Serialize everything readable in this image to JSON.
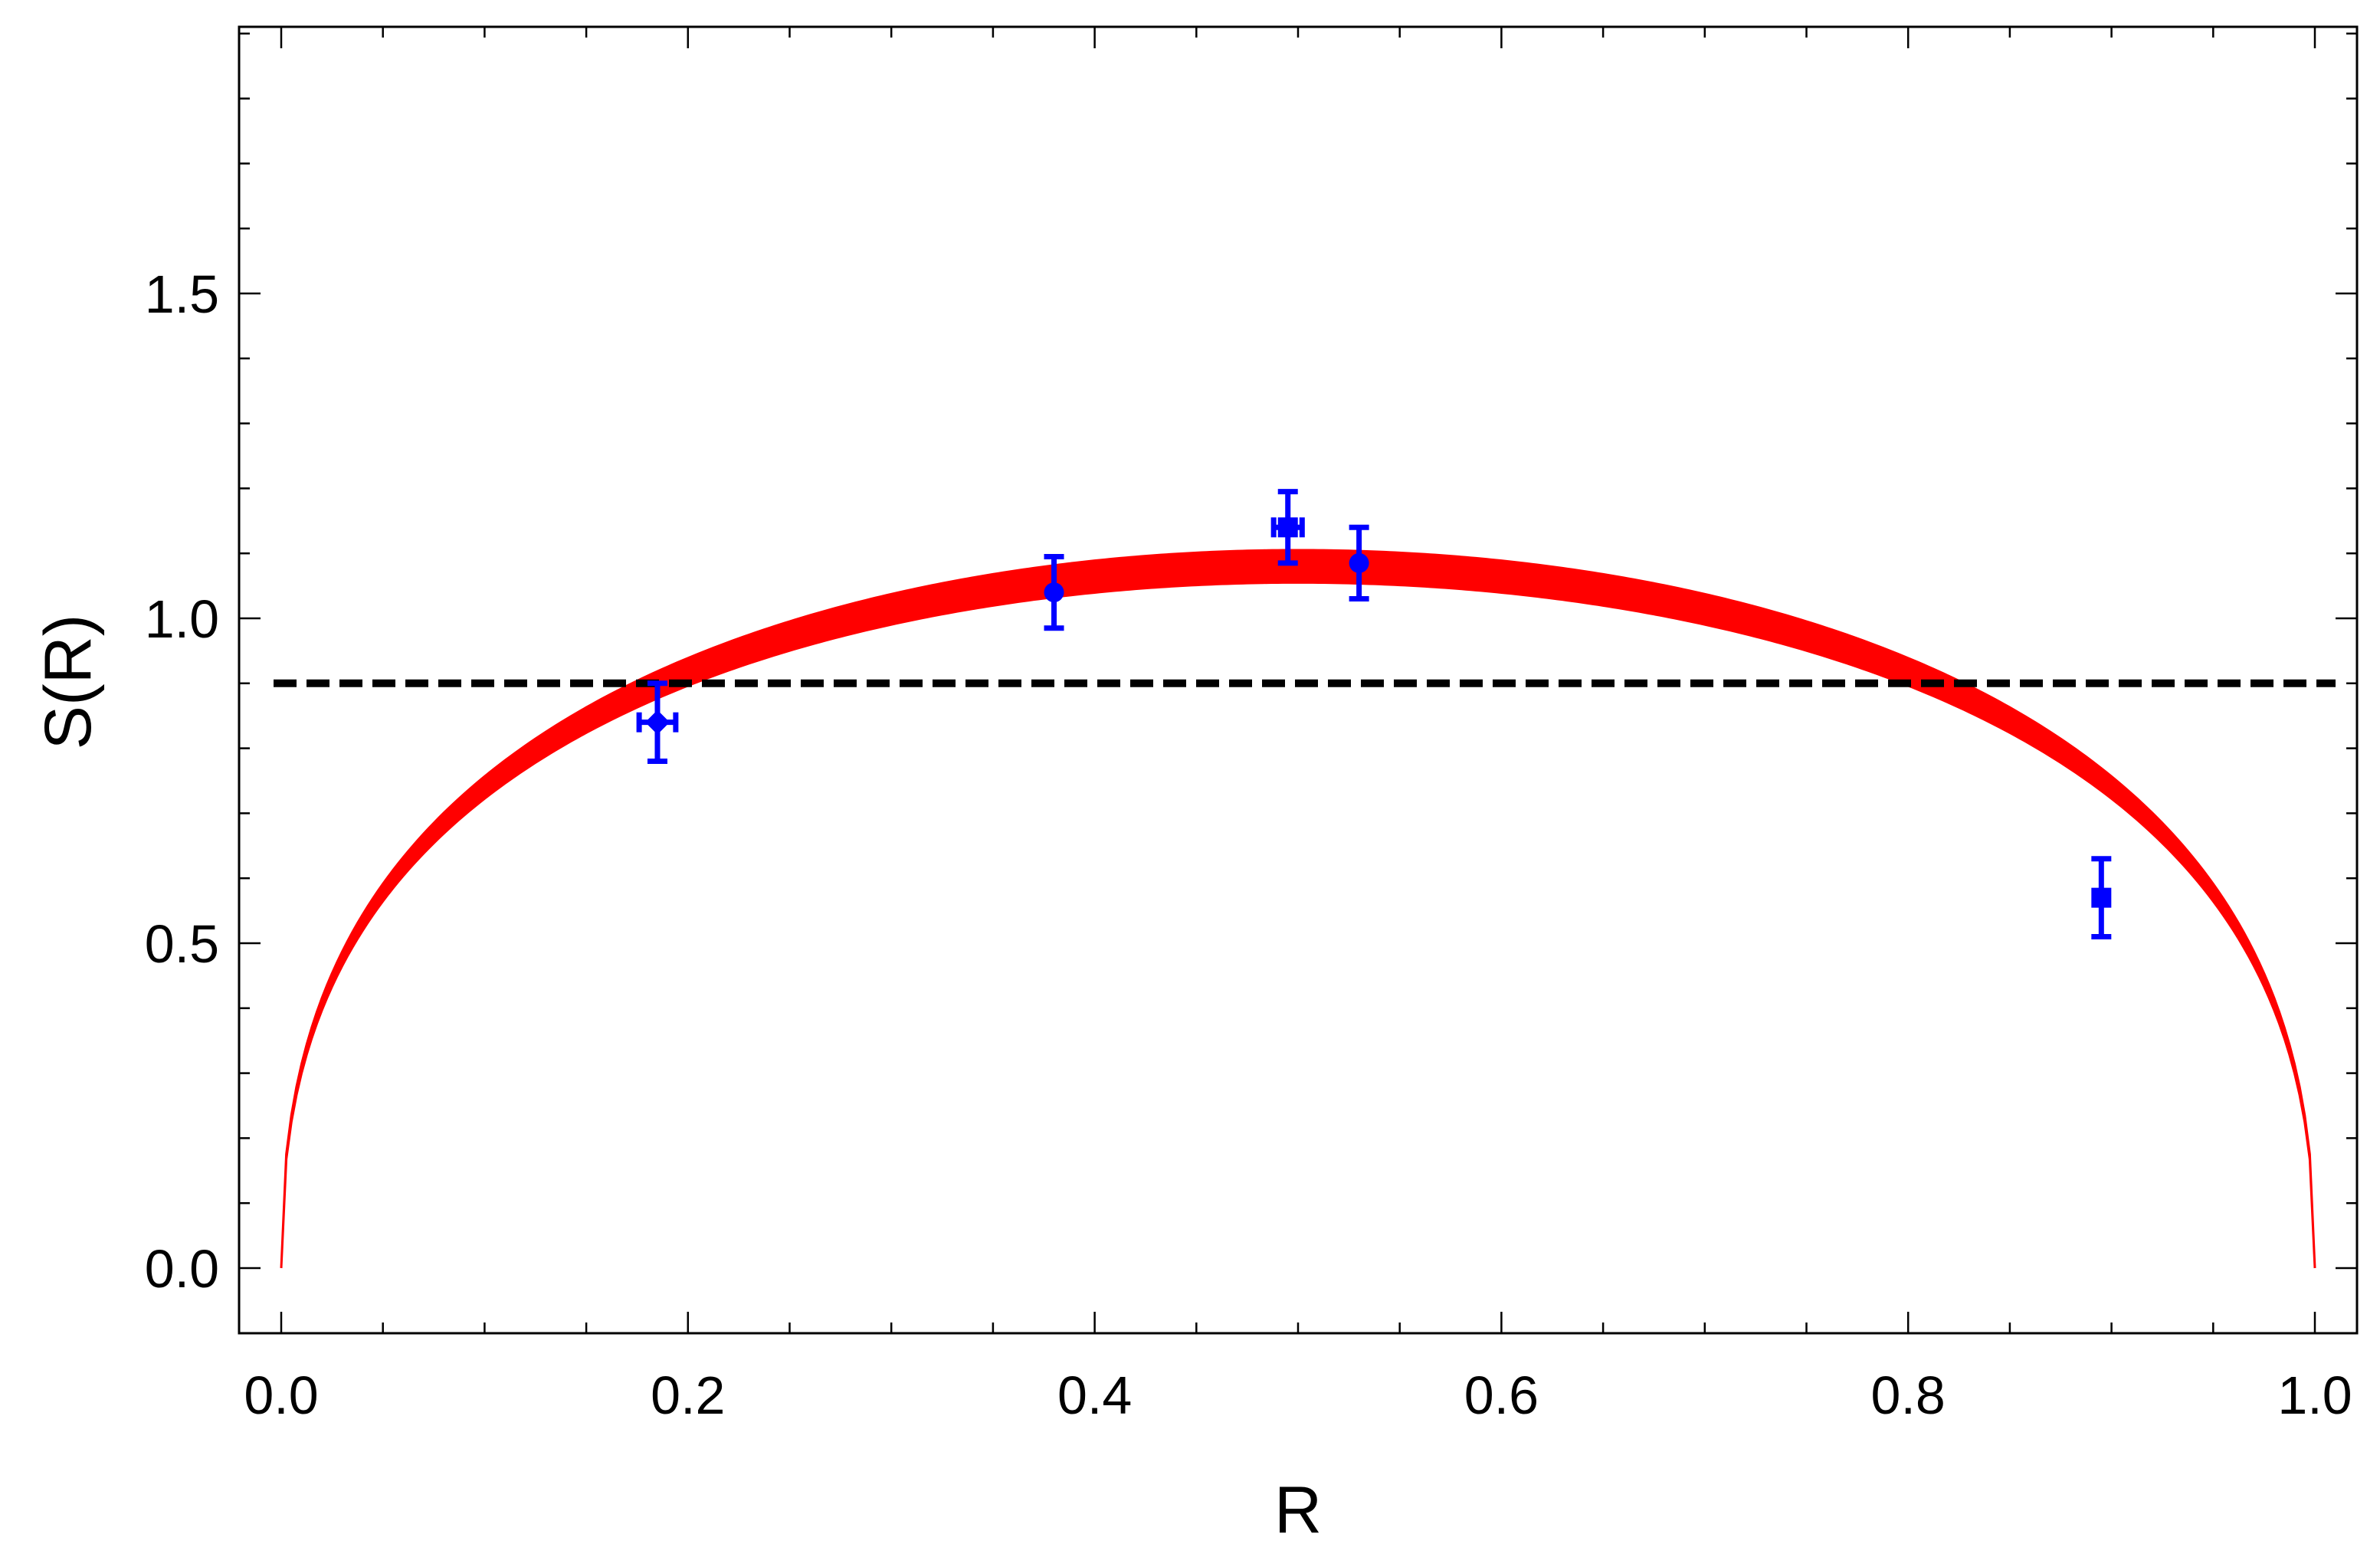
{
  "chart_data": {
    "type": "scatter",
    "title": "",
    "xlabel": "R",
    "ylabel": "S(R)",
    "xlim": [
      -0.05,
      1.02
    ],
    "ylim": [
      -0.1,
      1.95
    ],
    "x_ticks": [
      "0.0",
      "0.2",
      "0.4",
      "0.6",
      "0.8",
      "1.0"
    ],
    "y_ticks": [
      "0.0",
      "0.5",
      "1.0",
      "1.5"
    ],
    "grid": false,
    "legend": "none",
    "band": {
      "color": "#ff0000",
      "formula_note": "S(R) band between lower and upper bound curves",
      "peak_lower": 1.055,
      "peak_upper": 1.105
    },
    "reference_line": {
      "y": 0.9,
      "style": "dashed",
      "color": "#000000"
    },
    "points": {
      "color": "#0000ff",
      "values": [
        {
          "x": 0.185,
          "y": 0.84,
          "xerr": 0.009,
          "yerr": 0.06,
          "marker": "diamond"
        },
        {
          "x": 0.38,
          "y": 1.04,
          "xerr": 0.0,
          "yerr": 0.055,
          "marker": "circle"
        },
        {
          "x": 0.495,
          "y": 1.14,
          "xerr": 0.007,
          "yerr": 0.055,
          "marker": "square"
        },
        {
          "x": 0.53,
          "y": 1.085,
          "xerr": 0.0,
          "yerr": 0.055,
          "marker": "circle"
        },
        {
          "x": 0.895,
          "y": 0.57,
          "xerr": 0.0,
          "yerr": 0.06,
          "marker": "square"
        }
      ]
    }
  }
}
